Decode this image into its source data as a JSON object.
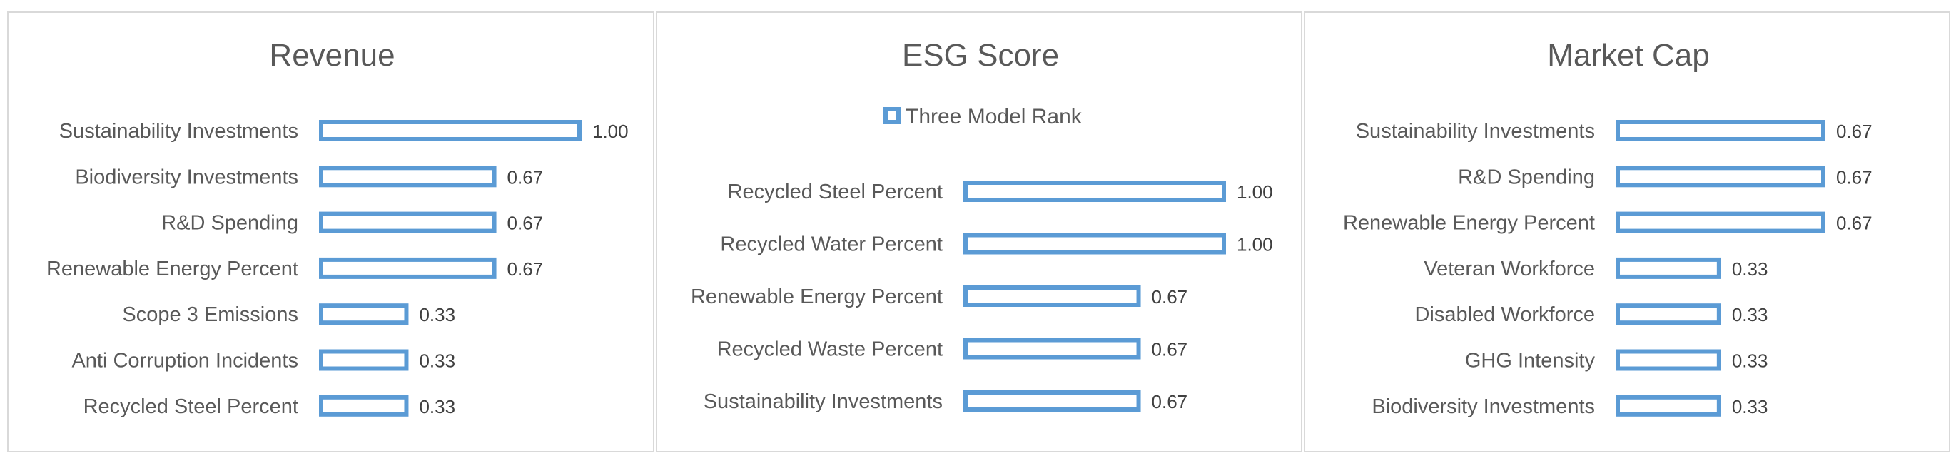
{
  "colors": {
    "bar_outline": "#5b9bd5",
    "border": "#d9d9d9",
    "text": "#595959"
  },
  "chart_data": [
    {
      "type": "bar",
      "orientation": "horizontal",
      "title": "Revenue",
      "categories": [
        "Sustainability Investments",
        "Biodiversity Investments",
        "R&D Spending",
        "Renewable Energy Percent",
        "Scope 3 Emissions",
        "Anti Corruption Incidents",
        "Recycled Steel Percent"
      ],
      "values": [
        1.0,
        0.67,
        0.67,
        0.67,
        0.33,
        0.33,
        0.33
      ],
      "value_labels": [
        "1.00",
        "0.67",
        "0.67",
        "0.67",
        "0.33",
        "0.33",
        "0.33"
      ],
      "xlim": [
        0,
        1
      ],
      "grid": false
    },
    {
      "type": "bar",
      "orientation": "horizontal",
      "title": "ESG Score",
      "legend": {
        "entries": [
          "Three Model Rank"
        ],
        "position": "top"
      },
      "categories": [
        "Recycled Steel Percent",
        "Recycled Water Percent",
        "Renewable Energy Percent",
        "Recycled Waste Percent",
        "Sustainability Investments"
      ],
      "values": [
        1.0,
        1.0,
        0.67,
        0.67,
        0.67
      ],
      "value_labels": [
        "1.00",
        "1.00",
        "0.67",
        "0.67",
        "0.67"
      ],
      "xlim": [
        0,
        1
      ],
      "grid": false
    },
    {
      "type": "bar",
      "orientation": "horizontal",
      "title": "Market Cap",
      "categories": [
        "Sustainability Investments",
        "R&D Spending",
        "Renewable Energy Percent",
        "Veteran Workforce",
        "Disabled Workforce",
        "GHG Intensity",
        "Biodiversity Investments"
      ],
      "values": [
        0.67,
        0.67,
        0.67,
        0.33,
        0.33,
        0.33,
        0.33
      ],
      "value_labels": [
        "0.67",
        "0.67",
        "0.67",
        "0.33",
        "0.33",
        "0.33",
        "0.33"
      ],
      "xlim": [
        0,
        1
      ],
      "grid": false
    }
  ]
}
